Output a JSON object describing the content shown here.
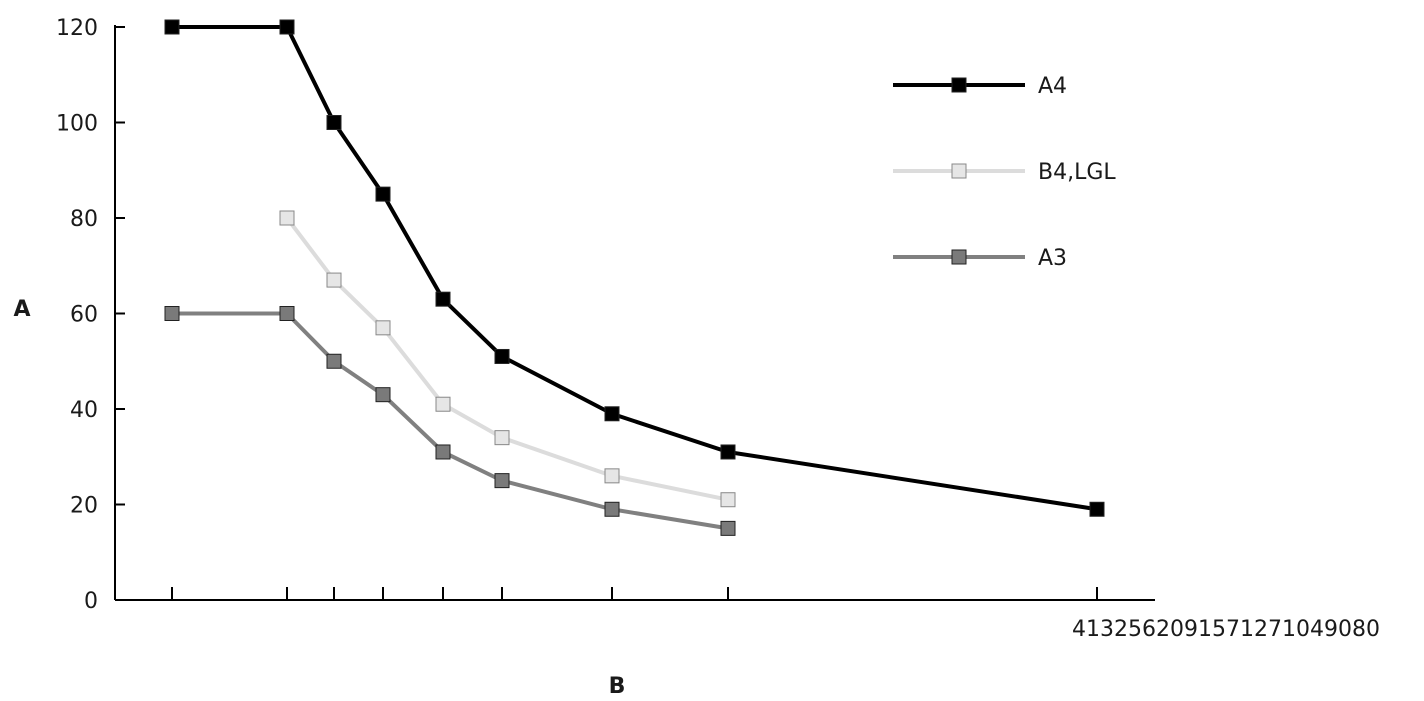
{
  "chart_data": {
    "type": "line",
    "title": "",
    "xlabel": "B",
    "ylabel": "A",
    "ylim": [
      0,
      120
    ],
    "yticks": [
      0,
      20,
      40,
      60,
      80,
      100,
      120
    ],
    "x_tick_count": 9,
    "x_tick_label_text": "4132562091571271049080",
    "grid": false,
    "legend_position": "top-right",
    "series": [
      {
        "name": "A4",
        "color": "#000000",
        "marker_fill": "#000000",
        "x_index": [
          0,
          1,
          2,
          3,
          4,
          5,
          6,
          7,
          8
        ],
        "values": [
          120,
          120,
          100,
          85,
          63,
          51,
          39,
          31,
          19
        ]
      },
      {
        "name": "B4,LGL",
        "color": "#dcdcdc",
        "marker_fill": "#e6e6e6",
        "x_index": [
          1,
          2,
          3,
          4,
          5,
          6,
          7
        ],
        "values": [
          80,
          67,
          57,
          41,
          34,
          26,
          21
        ]
      },
      {
        "name": "A3",
        "color": "#808080",
        "marker_fill": "#7a7a7a",
        "x_index": [
          0,
          1,
          2,
          3,
          4,
          5,
          6,
          7
        ],
        "values": [
          60,
          60,
          50,
          43,
          31,
          25,
          19,
          15
        ]
      }
    ]
  }
}
